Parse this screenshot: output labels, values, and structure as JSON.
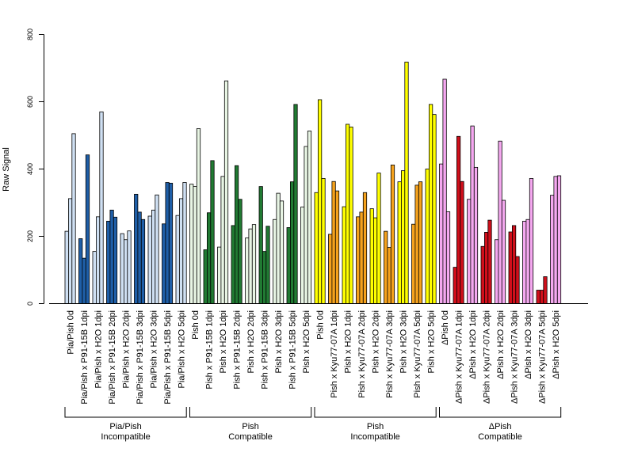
{
  "chart_data": {
    "type": "bar",
    "ylabel": "Raw Signal",
    "ylim": [
      0,
      800
    ],
    "yticks": [
      "0",
      "200",
      "400",
      "600",
      "800"
    ],
    "colors": {
      "pia_light": "#cfe0f3",
      "pia_dark": "#1f5fa8",
      "pish_comp_light": "#e8f5e4",
      "pish_comp_dark": "#217a33",
      "pish_incomp_light": "#ffff00",
      "pish_incomp_dark": "#f5a21d",
      "dpish_light": "#f5a8f0",
      "dpish_dark": "#d10f1b"
    },
    "categories": [
      {
        "label": "Pia/Pish 0d",
        "color": "pia_light",
        "values": [
          215,
          312,
          505
        ]
      },
      {
        "label": "Pia/Pish x P91-15B 1dpi",
        "color": "pia_dark",
        "values": [
          193,
          135,
          442
        ]
      },
      {
        "label": "Pia/Pish x H2O 1dpi",
        "color": "pia_light",
        "values": [
          155,
          258,
          570
        ]
      },
      {
        "label": "Pia/Pish x P91-15B 2dpi",
        "color": "pia_dark",
        "values": [
          245,
          278,
          257
        ]
      },
      {
        "label": "Pia/Pish x H2O 2dpi",
        "color": "pia_light",
        "values": [
          208,
          190,
          216
        ]
      },
      {
        "label": "Pia/Pish x P91-15B 3dpi",
        "color": "pia_dark",
        "values": [
          325,
          272,
          250
        ]
      },
      {
        "label": "Pia/Pish x H2O 3dpi",
        "color": "pia_light",
        "values": [
          260,
          278,
          323
        ]
      },
      {
        "label": "Pia/Pish x P91-15B 5dpi",
        "color": "pia_dark",
        "values": [
          237,
          360,
          358
        ]
      },
      {
        "label": "Pia/Pish x H2O 5dpi",
        "color": "pia_light",
        "values": [
          262,
          312,
          360
        ]
      },
      {
        "label": "Pish 0d",
        "color": "pish_comp_light",
        "values": [
          355,
          348,
          520
        ]
      },
      {
        "label": "Pish x P91-15B 1dpi",
        "color": "pish_comp_dark",
        "values": [
          160,
          270,
          425
        ]
      },
      {
        "label": "Pish x H2O 1dpi",
        "color": "pish_comp_light",
        "values": [
          168,
          378,
          662
        ]
      },
      {
        "label": "Pish x P91-15B 2dpi",
        "color": "pish_comp_dark",
        "values": [
          232,
          410,
          310
        ]
      },
      {
        "label": "Pish x H2O 2dpi",
        "color": "pish_comp_light",
        "values": [
          195,
          222,
          235
        ]
      },
      {
        "label": "Pish x P91-15B 3dpi",
        "color": "pish_comp_dark",
        "values": [
          348,
          155,
          230
        ]
      },
      {
        "label": "Pish x H2O 3dpi",
        "color": "pish_comp_light",
        "values": [
          250,
          328,
          305
        ]
      },
      {
        "label": "Pish x P91-15B 5dpi",
        "color": "pish_comp_dark",
        "values": [
          226,
          362,
          592
        ]
      },
      {
        "label": "Pish x H2O 5dpi",
        "color": "pish_comp_light",
        "values": [
          287,
          467,
          513
        ]
      },
      {
        "label": "Pish 0d",
        "color": "pish_incomp_light",
        "values": [
          330,
          606,
          372
        ]
      },
      {
        "label": "Pish x Kyu77-07A 1dpi",
        "color": "pish_incomp_dark",
        "values": [
          206,
          363,
          335
        ]
      },
      {
        "label": "Pish x H2O 1dpi",
        "color": "pish_incomp_light",
        "values": [
          288,
          533,
          525
        ]
      },
      {
        "label": "Pish x Kyu77-07A 2dpi",
        "color": "pish_incomp_dark",
        "values": [
          258,
          272,
          330
        ]
      },
      {
        "label": "Pish x H2O 2dpi",
        "color": "pish_incomp_light",
        "values": [
          282,
          255,
          388
        ]
      },
      {
        "label": "Pish x Kyu77-07A 3dpi",
        "color": "pish_incomp_dark",
        "values": [
          215,
          167,
          412
        ]
      },
      {
        "label": "Pish x H2O 3dpi",
        "color": "pish_incomp_light",
        "values": [
          362,
          395,
          718
        ]
      },
      {
        "label": "Pish x Kyu77-07A 5dpi",
        "color": "pish_incomp_dark",
        "values": [
          236,
          352,
          362
        ]
      },
      {
        "label": "Pish x H2O 5dpi",
        "color": "pish_incomp_light",
        "values": [
          400,
          592,
          562
        ]
      },
      {
        "label": "ΔPish 0d",
        "color": "dpish_light",
        "values": [
          415,
          667,
          273
        ]
      },
      {
        "label": "ΔPish x Kyu77-07A 1dpi",
        "color": "dpish_dark",
        "values": [
          108,
          497,
          363
        ]
      },
      {
        "label": "ΔPish x H2O 1dpi",
        "color": "dpish_light",
        "values": [
          310,
          528,
          405
        ]
      },
      {
        "label": "ΔPish x Kyu77-07A 2dpi",
        "color": "dpish_dark",
        "values": [
          170,
          212,
          248
        ]
      },
      {
        "label": "ΔPish x H2O 2dpi",
        "color": "dpish_light",
        "values": [
          190,
          483,
          307
        ]
      },
      {
        "label": "ΔPish x Kyu77-07A 3dpi",
        "color": "dpish_dark",
        "values": [
          213,
          232,
          140
        ]
      },
      {
        "label": "ΔPish x H2O 3dpi",
        "color": "dpish_light",
        "values": [
          245,
          250,
          372
        ]
      },
      {
        "label": "ΔPish x Kyu77-07A 5dpi",
        "color": "dpish_dark",
        "values": [
          40,
          40,
          80
        ]
      },
      {
        "label": "ΔPish x H2O 5dpi",
        "color": "dpish_light",
        "values": [
          322,
          378,
          380
        ]
      }
    ],
    "groups": [
      {
        "line1": "Pia/Pish",
        "line2": "Incompatible",
        "first": 0,
        "last": 8
      },
      {
        "line1": "Pish",
        "line2": "Compatible",
        "first": 9,
        "last": 17
      },
      {
        "line1": "Pish",
        "line2": "Incompatible",
        "first": 18,
        "last": 26
      },
      {
        "line1": "ΔPish",
        "line2": "Compatible",
        "first": 27,
        "last": 35
      }
    ]
  }
}
